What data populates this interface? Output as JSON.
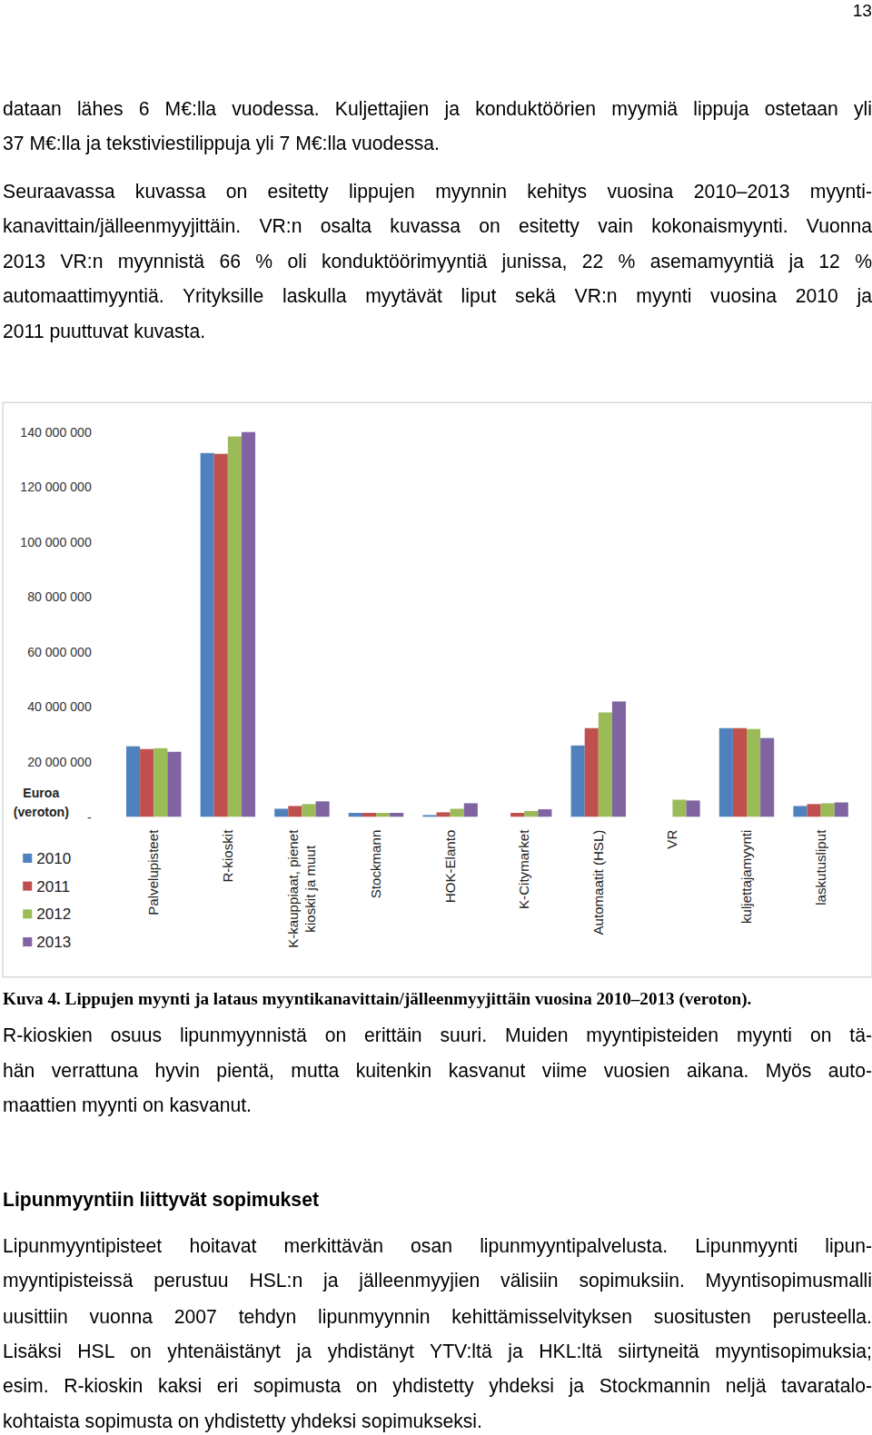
{
  "page_number": "13",
  "intro_paragraphs": [
    [
      "dataan lähes 6 M€:lla vuodessa. Kuljettajien ja konduktöörien myymiä lippuja ostetaan yli",
      "37 M€:lla ja tekstiviestilippuja yli 7 M€:lla vuodessa."
    ],
    [
      "Seuraavassa kuvassa on esitetty lippujen myynnin kehitys vuosina 2010–2013 myynti-",
      "kanavittain/jälleenmyyjittäin. VR:n osalta kuvassa on esitetty vain kokonaismyynti. Vuonna",
      "2013 VR:n myynnistä 66 % oli konduktöörimyyntiä junissa, 22 % asemamyyntiä ja 12 %",
      "automaattimyyntiä. Yrityksille laskulla myytävät liput sekä VR:n myynti vuosina 2010 ja",
      "2011 puuttuvat kuvasta."
    ]
  ],
  "caption": "Kuva 4. Lippujen myynti ja lataus myyntikanavittain/jälleenmyyjittäin vuosina 2010–2013 (veroton).",
  "after_paragraph": [
    "R-kioskien osuus lipunmyynnistä on erittäin suuri. Muiden myyntipisteiden myynti on tä-",
    "hän verrattuna hyvin pientä, mutta kuitenkin kasvanut viime vuosien aikana. Myös auto-",
    "maattien myynti on kasvanut."
  ],
  "heading": "Lipunmyyntiin liittyvät sopimukset",
  "section_paragraph": [
    "Lipunmyyntipisteet hoitavat merkittävän osan lipunmyyntipalvelusta. Lipunmyynti lipun-",
    "myyntipisteissä perustuu HSL:n ja jälleenmyyjien välisiin sopimuksiin. Myyntisopimusmalli",
    "uusittiin vuonna 2007 tehdyn lipunmyynnin kehittämisselvityksen suositusten perusteella.",
    "Lisäksi HSL on yhtenäistänyt ja yhdistänyt YTV:ltä ja HKL:ltä siirtyneitä myyntisopimuksia;",
    "esim. R-kioskin kaksi eri sopimusta on yhdistetty yhdeksi ja Stockmannin neljä tavaratalo-",
    "kohtaista sopimusta on yhdistetty yhdeksi sopimukseksi."
  ],
  "chart_data": {
    "type": "bar",
    "y_label": "Euroa (veroton)",
    "categories": [
      "Palvelupisteet",
      "R-kioskit",
      "K-kauppiaat, pienet kioskit ja muut",
      "Stockmann",
      "HOK-Elanto",
      "K-Citymarket",
      "Automaatit (HSL)",
      "VR",
      "kuljettajamyynti",
      "laskutusliput"
    ],
    "series": [
      {
        "name": "2010",
        "color": "#4f81bd",
        "values": [
          25700000,
          132300000,
          3000000,
          1500000,
          700000,
          null,
          26000000,
          null,
          32300000,
          4000000
        ]
      },
      {
        "name": "2011",
        "color": "#c0504d",
        "values": [
          24700000,
          132000000,
          4000000,
          1500000,
          1700000,
          1500000,
          32300000,
          null,
          32300000,
          4700000
        ]
      },
      {
        "name": "2012",
        "color": "#9bbb59",
        "values": [
          25000000,
          138300000,
          4700000,
          1500000,
          3000000,
          2200000,
          38000000,
          6300000,
          32000000,
          5000000
        ]
      },
      {
        "name": "2013",
        "color": "#8064a2",
        "values": [
          23700000,
          140000000,
          5700000,
          1500000,
          5000000,
          2800000,
          42000000,
          6000000,
          28700000,
          5300000
        ]
      }
    ],
    "ylim": [
      0,
      140000000
    ],
    "yticks": [
      {
        "value": 0,
        "label": "-"
      },
      {
        "value": 20000000,
        "label": "20 000 000"
      },
      {
        "value": 40000000,
        "label": "40 000 000"
      },
      {
        "value": 60000000,
        "label": "60 000 000"
      },
      {
        "value": 80000000,
        "label": "80 000 000"
      },
      {
        "value": 100000000,
        "label": "100 000 000"
      },
      {
        "value": 120000000,
        "label": "120 000 000"
      },
      {
        "value": 140000000,
        "label": "140 000 000"
      }
    ],
    "grid": false,
    "legend": "bottom-left"
  }
}
